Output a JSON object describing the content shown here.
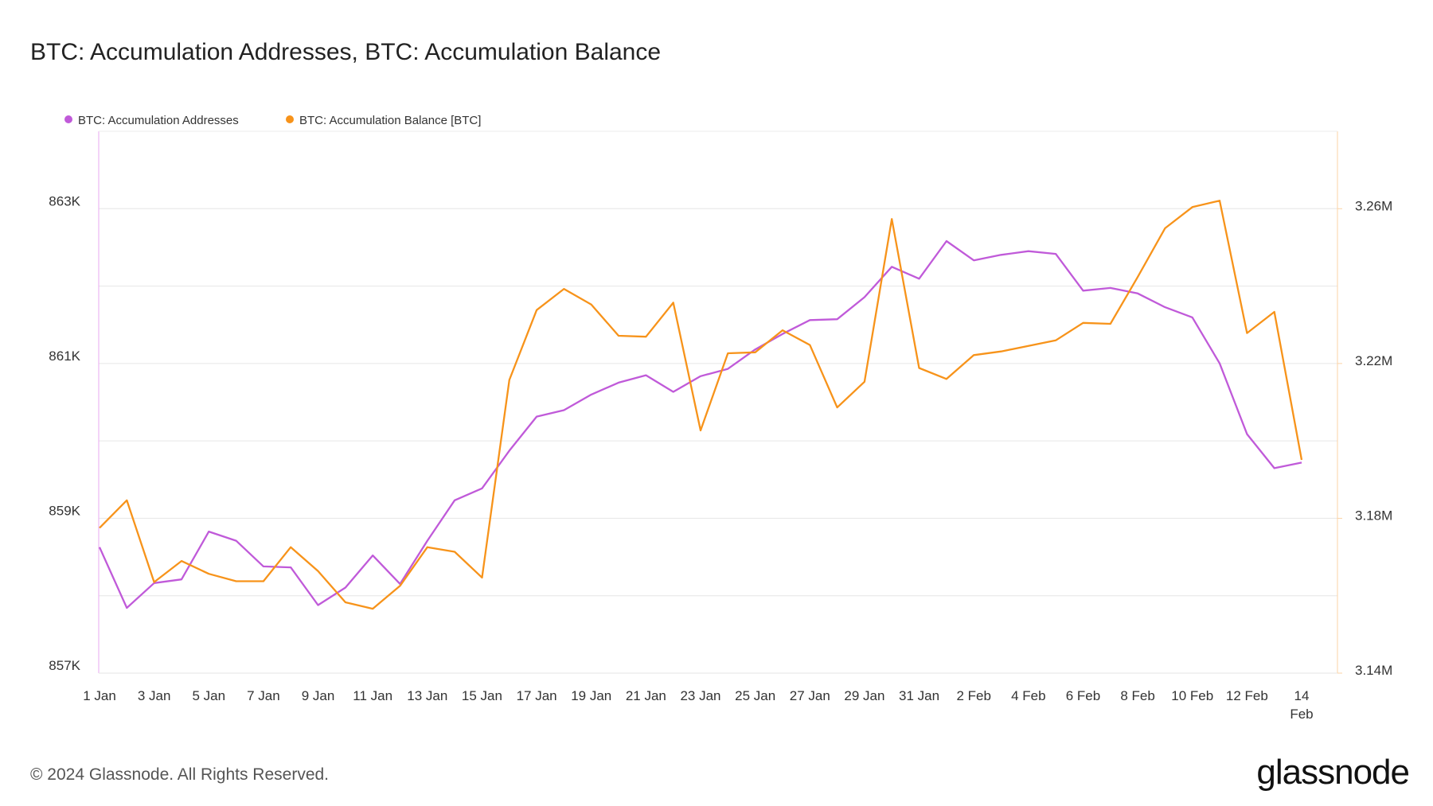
{
  "chart_data": {
    "type": "line",
    "title": "BTC: Accumulation Addresses, BTC: Accumulation Balance",
    "categories": [
      "1 Jan",
      null,
      "3 Jan",
      null,
      "5 Jan",
      null,
      "7 Jan",
      null,
      "9 Jan",
      null,
      "11 Jan",
      null,
      "13 Jan",
      null,
      "15 Jan",
      null,
      "17 Jan",
      null,
      "19 Jan",
      null,
      "21 Jan",
      null,
      "23 Jan",
      null,
      "25 Jan",
      null,
      "27 Jan",
      null,
      "29 Jan",
      null,
      "31 Jan",
      null,
      "2 Feb",
      null,
      "4 Feb",
      null,
      "6 Feb",
      null,
      "8 Feb",
      null,
      "10 Feb",
      null,
      "12 Feb",
      null,
      "14 Feb"
    ],
    "series": [
      {
        "name": "BTC: Accumulation Addresses",
        "color": "#c05ad9",
        "axis": "y",
        "values": [
          858627,
          857843,
          858164,
          858211,
          858829,
          858710,
          858378,
          858366,
          857879,
          858105,
          858520,
          858152,
          858710,
          859233,
          859387,
          859874,
          860314,
          860397,
          860599,
          860753,
          860848,
          860634,
          860836,
          860931,
          861181,
          861382,
          861561,
          861572,
          861857,
          862249,
          862095,
          862582,
          862333,
          862404,
          862451,
          862416,
          861941,
          861976,
          861905,
          861727,
          861596,
          861002,
          860088,
          859648,
          859720
        ]
      },
      {
        "name": "BTC: Accumulation Balance [BTC]",
        "color": "#f7931a",
        "axis": "y2",
        "values": [
          3177525,
          3184650,
          3163512,
          3168975,
          3165650,
          3163750,
          3163750,
          3172537,
          3166362,
          3158287,
          3156625,
          3162562,
          3172537,
          3171350,
          3164700,
          3215762,
          3233812,
          3239275,
          3235237,
          3227162,
          3226925,
          3235712,
          3202700,
          3222650,
          3222887,
          3228587,
          3224787,
          3208637,
          3215287,
          3257325,
          3218850,
          3216000,
          3222175,
          3223125,
          3224550,
          3225975,
          3230487,
          3230250,
          3242362,
          3254950,
          3260412,
          3262075,
          3227875,
          3233337,
          3195100
        ]
      }
    ],
    "ylim": [
      857000,
      864000
    ],
    "yticks": [
      {
        "value": 857000,
        "label": "857K"
      },
      {
        "value": 859000,
        "label": "859K"
      },
      {
        "value": 861000,
        "label": "861K"
      },
      {
        "value": 863000,
        "label": "863K"
      }
    ],
    "ygrid_minor": [
      858000,
      860000,
      862000
    ],
    "y2lim": [
      3140000,
      3280000
    ],
    "y2ticks": [
      {
        "value": 3140000,
        "label": "3.14M"
      },
      {
        "value": 3180000,
        "label": "3.18M"
      },
      {
        "value": 3220000,
        "label": "3.22M"
      },
      {
        "value": 3260000,
        "label": "3.26M"
      }
    ],
    "grid": true,
    "footer": "© 2024 Glassnode. All Rights Reserved.",
    "brand": "glassnode"
  }
}
